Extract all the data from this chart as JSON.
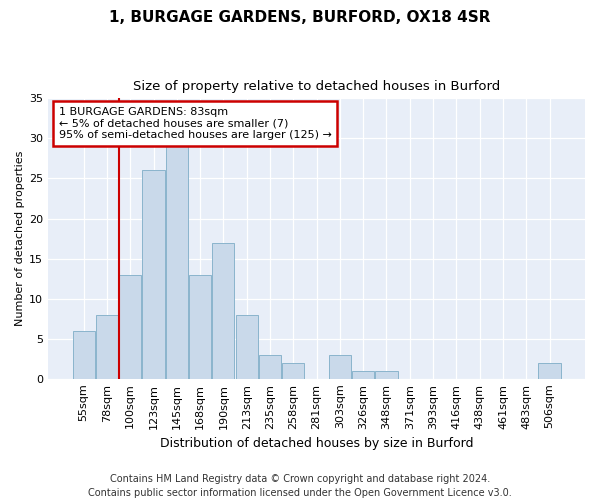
{
  "title1": "1, BURGAGE GARDENS, BURFORD, OX18 4SR",
  "title2": "Size of property relative to detached houses in Burford",
  "xlabel": "Distribution of detached houses by size in Burford",
  "ylabel": "Number of detached properties",
  "categories": [
    "55sqm",
    "78sqm",
    "100sqm",
    "123sqm",
    "145sqm",
    "168sqm",
    "190sqm",
    "213sqm",
    "235sqm",
    "258sqm",
    "281sqm",
    "303sqm",
    "326sqm",
    "348sqm",
    "371sqm",
    "393sqm",
    "416sqm",
    "438sqm",
    "461sqm",
    "483sqm",
    "506sqm"
  ],
  "values": [
    6,
    8,
    13,
    26,
    29,
    13,
    17,
    8,
    3,
    2,
    0,
    3,
    1,
    1,
    0,
    0,
    0,
    0,
    0,
    0,
    2
  ],
  "bar_color": "#c9d9ea",
  "bar_edge_color": "#8ab4cc",
  "red_line_x": 1.5,
  "annotation_line1": "1 BURGAGE GARDENS: 83sqm",
  "annotation_line2": "← 5% of detached houses are smaller (7)",
  "annotation_line3": "95% of semi-detached houses are larger (125) →",
  "annotation_box_color": "#ffffff",
  "annotation_box_edge": "#cc0000",
  "footnote": "Contains HM Land Registry data © Crown copyright and database right 2024.\nContains public sector information licensed under the Open Government Licence v3.0.",
  "ylim": [
    0,
    35
  ],
  "yticks": [
    0,
    5,
    10,
    15,
    20,
    25,
    30,
    35
  ],
  "plot_bg_color": "#e8eef8",
  "title1_fontsize": 11,
  "title2_fontsize": 9.5,
  "xlabel_fontsize": 9,
  "ylabel_fontsize": 8,
  "tick_fontsize": 8,
  "annotation_fontsize": 8,
  "footnote_fontsize": 7
}
